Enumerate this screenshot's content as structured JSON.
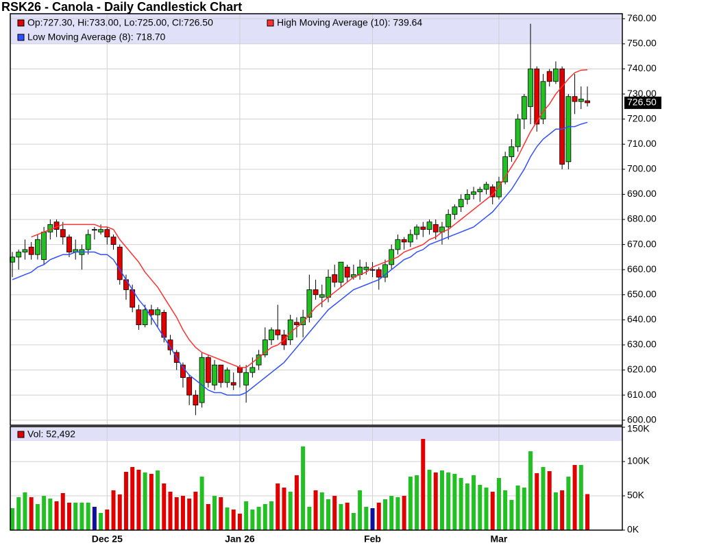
{
  "chart_data": [
    {
      "type": "candlestick",
      "title": "RSK26 - Canola - Daily Candlestick Chart",
      "ohlc_label": "Op:727.30, Hi:733.00, Lo:725.00, Cl:726.50",
      "last_price": {
        "value": 726.5,
        "label": "726.50"
      },
      "up_color": "#22c022",
      "down_color": "#e00000",
      "unchanged_color": "#1010a0",
      "categories": [
        null,
        null,
        null,
        null,
        null,
        null,
        null,
        null,
        null,
        null,
        null,
        null,
        null,
        null,
        null,
        "Dec 25",
        null,
        null,
        null,
        null,
        null,
        null,
        null,
        null,
        null,
        null,
        null,
        null,
        null,
        null,
        null,
        null,
        null,
        null,
        null,
        null,
        "Jan 26",
        null,
        null,
        null,
        null,
        null,
        null,
        null,
        null,
        null,
        null,
        null,
        null,
        null,
        null,
        null,
        null,
        null,
        null,
        null,
        null,
        "Feb",
        null,
        null,
        null,
        null,
        null,
        null,
        null,
        null,
        null,
        null,
        null,
        null,
        null,
        null,
        null,
        null,
        null,
        null,
        null,
        "Mar",
        null,
        null,
        null,
        null,
        null,
        null,
        null,
        null,
        null,
        null,
        null,
        null,
        null,
        null
      ],
      "open": [
        663,
        665,
        667,
        669,
        666,
        664,
        675,
        679,
        676,
        673,
        667,
        666,
        668,
        676,
        675,
        676,
        673,
        669,
        656,
        652,
        644,
        638,
        644,
        642,
        643,
        632,
        627,
        622,
        617,
        610,
        607,
        625,
        614,
        622,
        615,
        615,
        621,
        614,
        619,
        622,
        626,
        632,
        636,
        634,
        632,
        639,
        638,
        641,
        652,
        649,
        649,
        658,
        655,
        661,
        657,
        658,
        660,
        660,
        660,
        657,
        662,
        668,
        672,
        671,
        674,
        677,
        676,
        678,
        675,
        677,
        682,
        685,
        688,
        690,
        691,
        692,
        693,
        689,
        695,
        705,
        709,
        720,
        725,
        740,
        720,
        739,
        735,
        740,
        703,
        729,
        727,
        727.3
      ],
      "high": [
        667,
        668,
        672,
        671,
        674,
        677,
        680,
        680,
        679,
        674,
        672,
        670,
        676,
        677,
        678,
        677,
        674,
        670,
        658,
        654,
        646,
        646,
        646,
        645,
        644,
        634,
        628,
        623,
        618,
        612,
        627,
        626,
        624,
        622,
        621,
        619,
        622,
        622,
        625,
        628,
        637,
        637,
        646,
        636,
        642,
        641,
        644,
        658,
        656,
        654,
        660,
        662,
        663,
        662,
        662,
        664,
        663,
        663,
        661,
        664,
        670,
        674,
        673,
        676,
        678,
        679,
        680,
        680,
        679,
        684,
        686,
        690,
        692,
        693,
        693,
        695,
        694,
        697,
        707,
        712,
        722,
        730,
        758,
        741,
        738,
        740,
        743,
        741,
        730,
        738,
        733,
        733
      ],
      "low": [
        657,
        660,
        664,
        664,
        664,
        662,
        672,
        673,
        670,
        665,
        664,
        660,
        666,
        672,
        674,
        670,
        668,
        654,
        648,
        643,
        636,
        637,
        638,
        637,
        631,
        626,
        620,
        613,
        606,
        602,
        605,
        613,
        612,
        613,
        613,
        612,
        613,
        607,
        617,
        620,
        625,
        630,
        632,
        628,
        630,
        633,
        633,
        639,
        648,
        645,
        647,
        653,
        653,
        655,
        656,
        656,
        658,
        657,
        652,
        655,
        660,
        666,
        668,
        669,
        672,
        673,
        674,
        672,
        670,
        672,
        680,
        683,
        686,
        688,
        687,
        690,
        686,
        688,
        694,
        703,
        707,
        716,
        718,
        715,
        718,
        733,
        734,
        700,
        700,
        722,
        724,
        725
      ],
      "close": [
        665,
        667,
        668,
        666,
        672,
        675,
        678,
        676,
        673,
        667,
        668,
        668,
        674,
        676,
        676,
        673,
        670,
        656,
        652,
        645,
        638,
        644,
        642,
        644,
        633,
        628,
        623,
        617,
        610,
        606,
        625,
        615,
        622,
        615,
        620,
        614,
        619,
        619,
        621,
        626,
        632,
        636,
        634,
        630,
        640,
        638,
        641,
        652,
        650,
        650,
        657,
        655,
        663,
        657,
        658,
        661,
        661,
        660,
        657,
        662,
        668,
        672,
        671,
        674,
        677,
        676,
        679,
        675,
        677,
        682,
        685,
        688,
        690,
        691,
        692,
        694,
        689,
        695,
        705,
        709,
        720,
        729,
        740,
        718,
        735,
        735,
        740,
        702,
        729,
        727,
        728,
        726.5
      ],
      "series": [
        {
          "name": "High Moving Average (10): 739.64",
          "color": "#ff3030",
          "values": [
            null,
            null,
            null,
            673,
            674,
            675,
            676,
            677,
            678,
            678,
            678,
            678,
            678,
            678,
            677,
            677,
            676,
            672,
            669,
            666,
            663,
            659,
            656,
            653,
            649,
            645,
            641,
            636,
            632,
            629,
            627,
            626,
            625,
            624,
            623,
            622,
            621,
            621,
            623,
            625,
            627,
            629,
            630,
            632,
            635,
            637,
            639,
            642,
            645,
            647,
            649,
            651,
            653,
            655,
            657,
            658,
            659,
            661,
            662,
            663,
            664,
            665,
            667,
            668,
            669,
            670,
            672,
            673,
            675,
            676,
            678,
            680,
            682,
            684,
            686,
            688,
            690,
            693,
            697,
            701,
            705,
            710,
            715,
            719,
            723,
            726,
            730,
            733,
            736,
            738.5,
            739.5,
            739.64
          ]
        },
        {
          "name": "Low Moving Average (8): 718.70",
          "color": "#3050ff",
          "values": [
            656,
            657,
            658,
            659,
            661,
            662,
            664,
            665,
            666,
            666,
            667,
            667,
            667,
            667,
            666,
            666,
            664,
            660,
            656,
            652,
            648,
            645,
            641,
            637,
            633,
            629,
            625,
            621,
            618,
            616,
            614,
            612,
            611,
            611,
            610,
            610,
            610,
            611,
            613,
            615,
            617,
            619,
            621,
            623,
            626,
            629,
            632,
            635,
            638,
            641,
            644,
            646,
            648,
            650,
            652,
            653,
            654,
            655,
            656,
            658,
            660,
            662,
            664,
            665,
            667,
            668,
            670,
            671,
            672,
            673,
            674,
            675,
            676,
            677,
            679,
            681,
            683,
            686,
            689,
            692,
            696,
            700,
            705,
            709,
            712,
            714,
            716,
            716,
            717,
            717,
            718,
            718.7
          ]
        }
      ],
      "ylim": [
        598,
        762
      ],
      "yticks": [
        {
          "value": 600,
          "label": "600.00"
        },
        {
          "value": 610,
          "label": "610.00"
        },
        {
          "value": 620,
          "label": "620.00"
        },
        {
          "value": 630,
          "label": "630.00"
        },
        {
          "value": 640,
          "label": "640.00"
        },
        {
          "value": 650,
          "label": "650.00"
        },
        {
          "value": 660,
          "label": "660.00"
        },
        {
          "value": 670,
          "label": "670.00"
        },
        {
          "value": 680,
          "label": "680.00"
        },
        {
          "value": 690,
          "label": "690.00"
        },
        {
          "value": 700,
          "label": "700.00"
        },
        {
          "value": 710,
          "label": "710.00"
        },
        {
          "value": 720,
          "label": "720.00"
        },
        {
          "value": 730,
          "label": "730.00"
        },
        {
          "value": 740,
          "label": "740.00"
        },
        {
          "value": 750,
          "label": "750.00"
        },
        {
          "value": 760,
          "label": "760.00"
        }
      ],
      "grid": true
    },
    {
      "type": "bar",
      "legend_label": "Vol: 52,492",
      "values": [
        32000,
        48000,
        55000,
        48000,
        38000,
        50000,
        46000,
        42000,
        54000,
        40000,
        40000,
        40000,
        40000,
        34000,
        25000,
        30000,
        58000,
        52000,
        85000,
        92000,
        88000,
        84000,
        82000,
        87000,
        68000,
        56000,
        48000,
        50000,
        46000,
        56000,
        78000,
        38000,
        50000,
        48000,
        33000,
        30000,
        24000,
        42000,
        30000,
        34000,
        38000,
        42000,
        68000,
        62000,
        56000,
        80000,
        122000,
        34000,
        58000,
        55000,
        45000,
        50000,
        38000,
        40000,
        25000,
        58000,
        34000,
        32000,
        40000,
        45000,
        50000,
        48000,
        50000,
        78000,
        80000,
        133000,
        88000,
        84000,
        87000,
        84000,
        82000,
        76000,
        68000,
        80000,
        66000,
        62000,
        56000,
        76000,
        58000,
        44000,
        65000,
        62000,
        115000,
        83000,
        92000,
        86000,
        55000,
        58000,
        78000,
        95000,
        95000,
        52492
      ],
      "ylim": [
        0,
        150000
      ],
      "yticks": [
        {
          "value": 0,
          "label": "0K"
        },
        {
          "value": 50000,
          "label": "50K"
        },
        {
          "value": 100000,
          "label": "100K"
        },
        {
          "value": 150000,
          "label": "150K"
        }
      ],
      "grid": true
    }
  ]
}
